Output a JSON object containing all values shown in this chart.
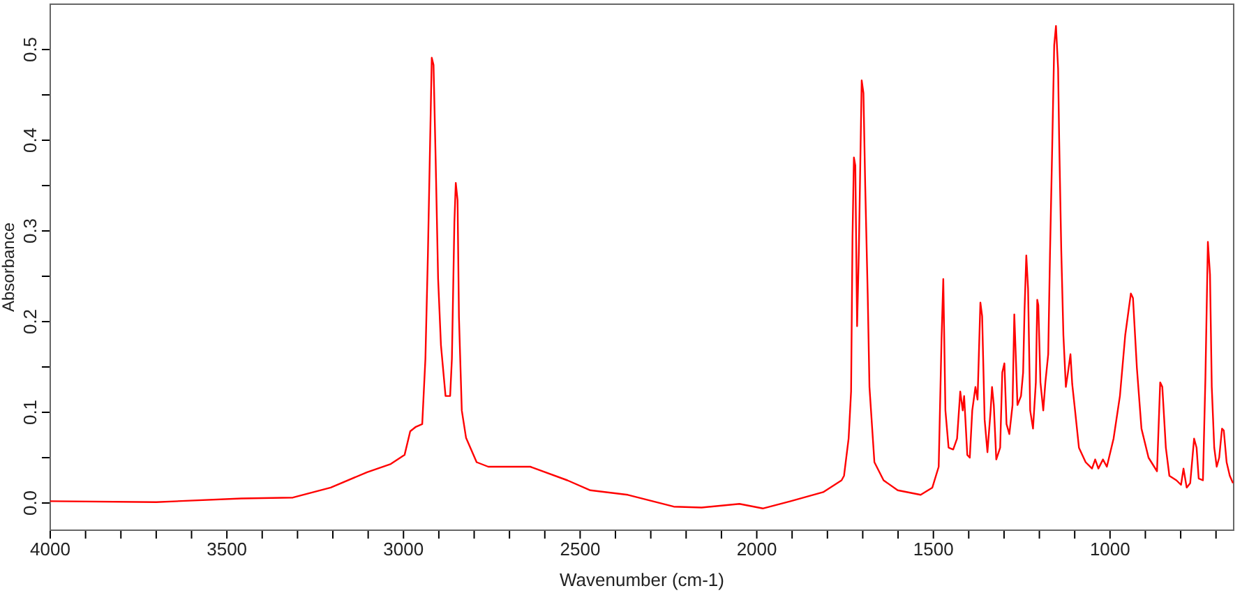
{
  "chart_data": {
    "type": "line",
    "xlabel": "Wavenumber (cm-1)",
    "ylabel": "Absorbance",
    "xlim": [
      4000,
      650
    ],
    "ylim": [
      -0.03,
      0.55
    ],
    "xticks": [
      4000,
      {
        "value": 3900,
        "label": null
      },
      {
        "value": 3800,
        "label": null
      },
      {
        "value": 3700,
        "label": null
      },
      {
        "value": 3600,
        "label": null
      },
      3500,
      {
        "value": 3400,
        "label": null
      },
      {
        "value": 3300,
        "label": null
      },
      {
        "value": 3200,
        "label": null
      },
      {
        "value": 3100,
        "label": null
      },
      3000,
      {
        "value": 2900,
        "label": null
      },
      {
        "value": 2800,
        "label": null
      },
      {
        "value": 2700,
        "label": null
      },
      {
        "value": 2600,
        "label": null
      },
      2500,
      {
        "value": 2400,
        "label": null
      },
      {
        "value": 2300,
        "label": null
      },
      {
        "value": 2200,
        "label": null
      },
      {
        "value": 2100,
        "label": null
      },
      2000,
      {
        "value": 1900,
        "label": null
      },
      {
        "value": 1800,
        "label": null
      },
      {
        "value": 1700,
        "label": null
      },
      {
        "value": 1600,
        "label": null
      },
      1500,
      {
        "value": 1400,
        "label": null
      },
      {
        "value": 1300,
        "label": null
      },
      {
        "value": 1200,
        "label": null
      },
      {
        "value": 1100,
        "label": null
      },
      1000,
      {
        "value": 900,
        "label": null
      },
      {
        "value": 800,
        "label": null
      },
      {
        "value": 700,
        "label": null
      }
    ],
    "yticks": [
      {
        "value": 0,
        "label": "0.0"
      },
      {
        "value": 0.05,
        "label": null
      },
      {
        "value": 0.1,
        "label": "0.1"
      },
      {
        "value": 0.15,
        "label": null
      },
      {
        "value": 0.2,
        "label": "0.2"
      },
      {
        "value": 0.25,
        "label": null
      },
      {
        "value": 0.3,
        "label": "0.3"
      },
      {
        "value": 0.35,
        "label": null
      },
      {
        "value": 0.4,
        "label": "0.4"
      },
      {
        "value": 0.45,
        "label": null
      },
      {
        "value": 0.5,
        "label": "0.5"
      }
    ],
    "grid": false,
    "legend": false,
    "marker": "none",
    "line_style": "solid",
    "series": [
      {
        "color": "#ff0000",
        "x": [
          4000,
          3700,
          3459,
          3313,
          3206,
          3103,
          3036,
          2997,
          2981,
          2965,
          2947,
          2938,
          2931,
          2920,
          2915,
          2909,
          2902,
          2894,
          2881,
          2868,
          2863,
          2856,
          2852,
          2847,
          2843,
          2835,
          2823,
          2793,
          2760,
          2641,
          2536,
          2471,
          2365,
          2235,
          2156,
          2049,
          1983,
          1904,
          1812,
          1760,
          1753,
          1740,
          1733,
          1729,
          1725,
          1721,
          1716,
          1711,
          1703,
          1698,
          1693,
          1686,
          1681,
          1667,
          1641,
          1601,
          1536,
          1503,
          1485,
          1477,
          1472,
          1466,
          1457,
          1444,
          1433,
          1424,
          1417,
          1413,
          1404,
          1397,
          1390,
          1381,
          1375,
          1367,
          1362,
          1355,
          1347,
          1338,
          1334,
          1329,
          1322,
          1311,
          1305,
          1299,
          1293,
          1285,
          1276,
          1271,
          1266,
          1262,
          1252,
          1246,
          1242,
          1237,
          1232,
          1226,
          1218,
          1210,
          1206,
          1203,
          1197,
          1189,
          1183,
          1175,
          1170,
          1164,
          1158,
          1153,
          1147,
          1144,
          1138,
          1132,
          1125,
          1119,
          1112,
          1107,
          1099,
          1088,
          1069,
          1051,
          1042,
          1033,
          1020,
          1009,
          990,
          972,
          957,
          941,
          935,
          924,
          911,
          891,
          867,
          858,
          852,
          842,
          832,
          812,
          799,
          792,
          783,
          773,
          762,
          755,
          749,
          737,
          730,
          723,
          717,
          712,
          705,
          698,
          691,
          683,
          678,
          670,
          661,
          652
        ],
        "values": [
          0.002,
          0.001,
          0.005,
          0.006,
          0.017,
          0.034,
          0.043,
          0.053,
          0.079,
          0.084,
          0.087,
          0.159,
          0.273,
          0.491,
          0.483,
          0.379,
          0.247,
          0.174,
          0.118,
          0.118,
          0.159,
          0.309,
          0.353,
          0.334,
          0.205,
          0.102,
          0.072,
          0.045,
          0.04,
          0.04,
          0.025,
          0.014,
          0.009,
          -0.004,
          -0.005,
          -0.001,
          -0.006,
          0.002,
          0.012,
          0.025,
          0.03,
          0.071,
          0.123,
          0.293,
          0.381,
          0.372,
          0.195,
          0.278,
          0.466,
          0.452,
          0.35,
          0.231,
          0.128,
          0.045,
          0.025,
          0.014,
          0.009,
          0.017,
          0.04,
          0.18,
          0.247,
          0.102,
          0.061,
          0.059,
          0.071,
          0.123,
          0.102,
          0.118,
          0.053,
          0.05,
          0.102,
          0.128,
          0.114,
          0.221,
          0.206,
          0.092,
          0.056,
          0.102,
          0.128,
          0.108,
          0.048,
          0.061,
          0.144,
          0.154,
          0.087,
          0.076,
          0.108,
          0.208,
          0.154,
          0.108,
          0.118,
          0.144,
          0.213,
          0.273,
          0.236,
          0.102,
          0.082,
          0.133,
          0.224,
          0.218,
          0.133,
          0.102,
          0.133,
          0.164,
          0.273,
          0.386,
          0.505,
          0.526,
          0.479,
          0.402,
          0.278,
          0.185,
          0.128,
          0.144,
          0.164,
          0.131,
          0.102,
          0.061,
          0.045,
          0.038,
          0.048,
          0.038,
          0.048,
          0.04,
          0.071,
          0.118,
          0.185,
          0.231,
          0.226,
          0.149,
          0.082,
          0.05,
          0.035,
          0.133,
          0.128,
          0.061,
          0.03,
          0.025,
          0.02,
          0.038,
          0.017,
          0.022,
          0.071,
          0.061,
          0.027,
          0.025,
          0.138,
          0.288,
          0.252,
          0.128,
          0.061,
          0.04,
          0.05,
          0.082,
          0.08,
          0.045,
          0.03,
          0.022
        ]
      }
    ]
  }
}
